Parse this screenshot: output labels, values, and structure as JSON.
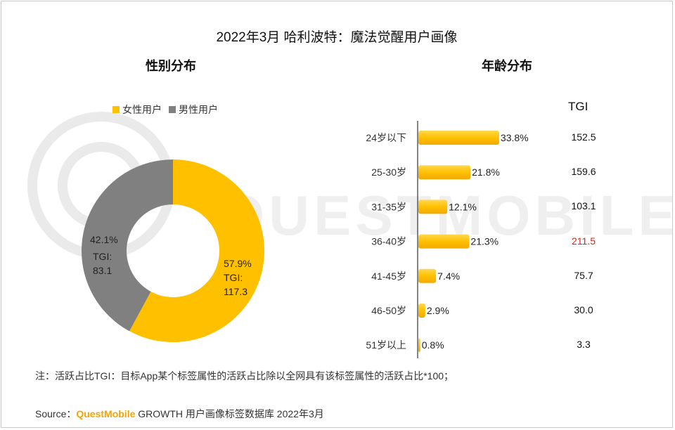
{
  "title": "2022年3月 哈利波特：魔法觉醒用户画像",
  "watermark": "QUESTMOBILE",
  "colors": {
    "female": "#FFC000",
    "male": "#808080",
    "bar": "#FFC000",
    "highlight": "#D42A1D"
  },
  "gender": {
    "subtitle": "性别分布",
    "legend": [
      "女性用户",
      "男性用户"
    ],
    "female_pct_label": "57.9%",
    "female_tgi_label": "TGI:",
    "female_tgi_value": "117.3",
    "male_pct_label": "42.1%",
    "male_tgi_label": "TGI:",
    "male_tgi_value": "83.1"
  },
  "age": {
    "subtitle": "年龄分布",
    "tgi_header": "TGI"
  },
  "chart_data": [
    {
      "type": "pie",
      "categories": [
        "女性用户",
        "男性用户"
      ],
      "values": [
        57.9,
        42.1
      ],
      "tgi": [
        117.3,
        83.1
      ],
      "title": "性别分布",
      "legend": "top-left"
    },
    {
      "type": "bar",
      "categories": [
        "24岁以下",
        "25-30岁",
        "31-35岁",
        "36-40岁",
        "41-45岁",
        "46-50岁",
        "51岁以上"
      ],
      "values": [
        33.8,
        21.8,
        12.1,
        21.3,
        7.4,
        2.9,
        0.8
      ],
      "value_labels": [
        "33.8%",
        "21.8%",
        "12.1%",
        "21.3%",
        "7.4%",
        "2.9%",
        "0.8%"
      ],
      "tgi": [
        "152.5",
        "159.6",
        "103.1",
        "211.5",
        "75.7",
        "30.0",
        "3.3"
      ],
      "tgi_highlight_index": 3,
      "title": "年龄分布",
      "orientation": "horizontal",
      "grid": false
    }
  ],
  "footnote": "注：活跃占比TGI：目标App某个标签属性的活跃占比除以全网具有该标签属性的活跃占比*100；",
  "source": {
    "prefix": "Source：",
    "brand": "QuestMobile",
    "text": " GROWTH 用户画像标签数据库 2022年3月"
  }
}
